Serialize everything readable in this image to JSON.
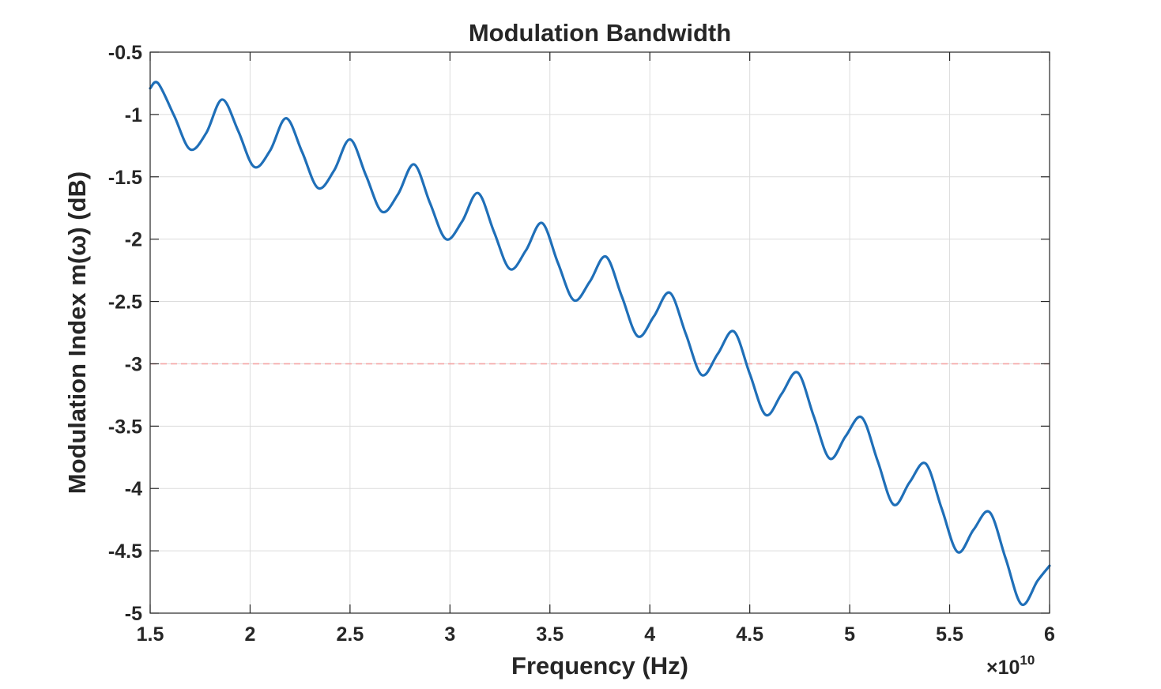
{
  "chart_data": {
    "type": "line",
    "title": "Modulation Bandwidth",
    "xlabel": "Frequency (Hz)",
    "ylabel": "Modulation Index m(ω) (dB)",
    "x_multiplier_label": "×10",
    "x_multiplier_exponent": "10",
    "xlim": [
      1.5,
      6
    ],
    "ylim": [
      -5,
      -0.5
    ],
    "x_ticks": [
      "1.5",
      "2",
      "2.5",
      "3",
      "3.5",
      "4",
      "4.5",
      "5",
      "5.5",
      "6"
    ],
    "y_ticks": [
      "-0.5",
      "-1",
      "-1.5",
      "-2",
      "-2.5",
      "-3",
      "-3.5",
      "-4",
      "-4.5",
      "-5"
    ],
    "grid": true,
    "series": [
      {
        "color": "#1f6fb8",
        "x": [
          1.5,
          1.54,
          1.62,
          1.7,
          1.78,
          1.86,
          1.94,
          2.02,
          2.1,
          2.18,
          2.26,
          2.34,
          2.42,
          2.5,
          2.58,
          2.66,
          2.74,
          2.82,
          2.9,
          2.98,
          3.06,
          3.14,
          3.22,
          3.3,
          3.38,
          3.46,
          3.54,
          3.62,
          3.7,
          3.78,
          3.86,
          3.94,
          4.02,
          4.1,
          4.18,
          4.26,
          4.34,
          4.42,
          4.5,
          4.58,
          4.66,
          4.74,
          4.82,
          4.9,
          4.98,
          5.06,
          5.14,
          5.22,
          5.3,
          5.38,
          5.46,
          5.54,
          5.62,
          5.7,
          5.78,
          5.86,
          5.94,
          6.0
        ],
        "y": [
          -0.79,
          -0.75,
          -1.01,
          -1.28,
          -1.15,
          -0.88,
          -1.13,
          -1.42,
          -1.29,
          -1.03,
          -1.3,
          -1.59,
          -1.45,
          -1.2,
          -1.49,
          -1.78,
          -1.64,
          -1.4,
          -1.71,
          -2.0,
          -1.86,
          -1.63,
          -1.94,
          -2.24,
          -2.09,
          -1.87,
          -2.19,
          -2.49,
          -2.34,
          -2.14,
          -2.46,
          -2.78,
          -2.62,
          -2.43,
          -2.76,
          -3.09,
          -2.92,
          -2.74,
          -3.08,
          -3.41,
          -3.24,
          -3.07,
          -3.42,
          -3.76,
          -3.58,
          -3.43,
          -3.78,
          -4.13,
          -3.95,
          -3.8,
          -4.16,
          -4.51,
          -4.33,
          -4.19,
          -4.56,
          -4.93,
          -4.74,
          -4.62
        ]
      }
    ],
    "reference_lines": [
      {
        "y": -3,
        "color": "#f4a3a3",
        "style": "dashed"
      }
    ]
  }
}
